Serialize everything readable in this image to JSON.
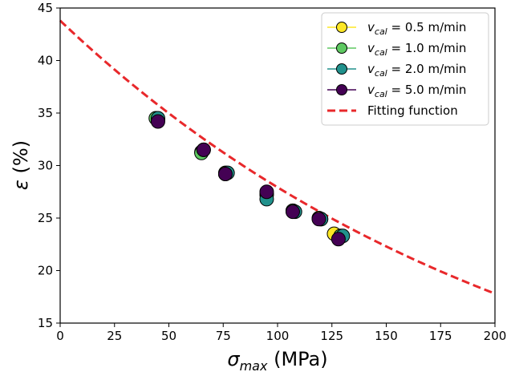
{
  "chart_data": {
    "type": "scatter",
    "xlabel": {
      "main": "σ",
      "sub": "max",
      "unit": " (MPa)"
    },
    "ylabel": {
      "main": "ε",
      "unit": " (%)"
    },
    "xlim": [
      0,
      200
    ],
    "ylim": [
      15,
      45
    ],
    "xticks": [
      0,
      25,
      50,
      75,
      100,
      125,
      150,
      175,
      200
    ],
    "yticks": [
      15,
      20,
      25,
      30,
      35,
      40,
      45
    ],
    "grid": false,
    "legend_position": "top-right",
    "series": [
      {
        "name": "v_cal = 0.5 m/min",
        "legend_main": "v",
        "legend_sub": "cal",
        "legend_rest": " = 0.5 m/min",
        "color": "#fde725",
        "points": [
          [
            45,
            34.4
          ],
          [
            65,
            31.3
          ],
          [
            76,
            29.3
          ],
          [
            95,
            27.3
          ],
          [
            107,
            25.7
          ],
          [
            119,
            25.0
          ],
          [
            126,
            23.5
          ]
        ]
      },
      {
        "name": "v_cal = 1.0 m/min",
        "legend_main": "v",
        "legend_sub": "cal",
        "legend_rest": " = 1.0 m/min",
        "color": "#5ec962",
        "points": [
          [
            44,
            34.5
          ],
          [
            65,
            31.2
          ],
          [
            76,
            29.2
          ],
          [
            95,
            27.2
          ],
          [
            107,
            25.7
          ],
          [
            120,
            24.9
          ],
          [
            129,
            23.3
          ]
        ]
      },
      {
        "name": "v_cal = 2.0 m/min",
        "legend_main": "v",
        "legend_sub": "cal",
        "legend_rest": " = 2.0 m/min",
        "color": "#21918c",
        "points": [
          [
            45,
            34.5
          ],
          [
            66,
            31.5
          ],
          [
            77,
            29.3
          ],
          [
            95,
            26.8
          ],
          [
            108,
            25.6
          ],
          [
            120,
            24.9
          ],
          [
            130,
            23.3
          ]
        ]
      },
      {
        "name": "v_cal = 5.0 m/min",
        "legend_main": "v",
        "legend_sub": "cal",
        "legend_rest": " = 5.0 m/min",
        "color": "#440154",
        "points": [
          [
            45,
            34.2
          ],
          [
            66,
            31.5
          ],
          [
            76,
            29.2
          ],
          [
            95,
            27.5
          ],
          [
            107,
            25.6
          ],
          [
            119,
            24.9
          ],
          [
            128,
            23.0
          ]
        ]
      }
    ],
    "fit": {
      "name": "Fitting function",
      "color": "#e8282b",
      "dash": "dashed",
      "model": "exponential",
      "a": 43.8,
      "b": -0.0045
    }
  }
}
